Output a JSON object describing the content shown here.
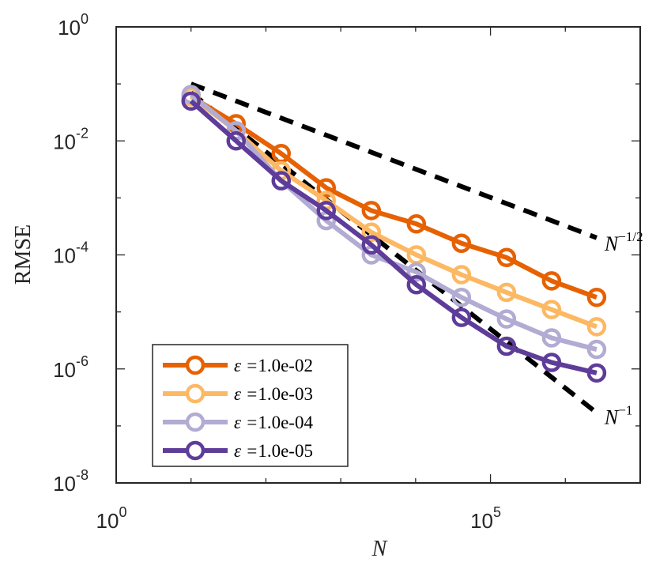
{
  "chart_data": {
    "type": "line",
    "xscale": "log",
    "yscale": "log",
    "xlabel": "N",
    "ylabel": "RMSE",
    "xlim": [
      1,
      10000000
    ],
    "ylim": [
      1e-08,
      1
    ],
    "x_ticks": [
      {
        "base": "10",
        "exp": "0"
      },
      {
        "base": "10",
        "exp": "5"
      }
    ],
    "y_ticks": [
      {
        "base": "10",
        "exp": "0"
      },
      {
        "base": "10",
        "exp": "-2"
      },
      {
        "base": "10",
        "exp": "-4"
      },
      {
        "base": "10",
        "exp": "-6"
      },
      {
        "base": "10",
        "exp": "-8"
      }
    ],
    "x": [
      10,
      40,
      160,
      640,
      2560,
      10240,
      40960,
      163840,
      655360,
      2621440
    ],
    "series": [
      {
        "name": "1.0e-02",
        "color": "#e66101",
        "values": [
          0.06,
          0.02,
          0.006,
          0.0015,
          0.0006,
          0.00035,
          0.00016,
          9e-05,
          3.5e-05,
          1.8e-05
        ]
      },
      {
        "name": "1.0e-03",
        "color": "#fdb863",
        "values": [
          0.06,
          0.015,
          0.003,
          0.0009,
          0.00025,
          0.0001,
          4.5e-05,
          2.2e-05,
          1.1e-05,
          5.5e-06
        ]
      },
      {
        "name": "1.0e-04",
        "color": "#b2abd2",
        "values": [
          0.065,
          0.015,
          0.002,
          0.0004,
          0.0001,
          5e-05,
          1.8e-05,
          7.5e-06,
          3.5e-06,
          2.2e-06
        ]
      },
      {
        "name": "1.0e-05",
        "color": "#5e3c99",
        "values": [
          0.05,
          0.01,
          0.002,
          0.0006,
          0.00015,
          3e-05,
          8e-06,
          2.5e-06,
          1.3e-06,
          8.5e-07
        ]
      }
    ],
    "reference_lines": [
      {
        "label_base": "N",
        "label_exp": "−1/2",
        "points": [
          [
            10,
            0.1
          ],
          [
            2621440,
            0.0002
          ]
        ]
      },
      {
        "label_base": "N",
        "label_exp": "−1",
        "points": [
          [
            10,
            0.07
          ],
          [
            2621440,
            1.7e-07
          ]
        ]
      }
    ],
    "legend": {
      "position": "bottom-left",
      "prefix": "ε =",
      "entries": [
        "1.0e-02",
        "1.0e-03",
        "1.0e-04",
        "1.0e-05"
      ]
    }
  }
}
